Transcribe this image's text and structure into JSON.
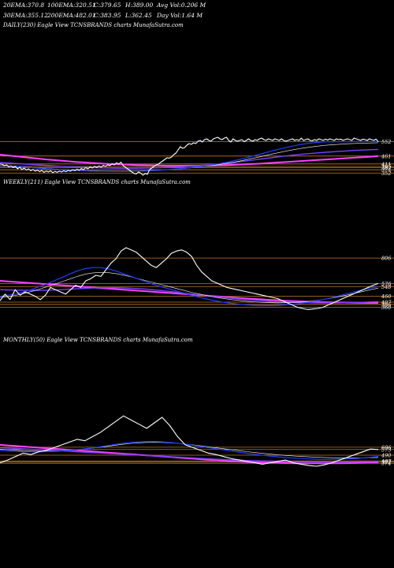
{
  "header": {
    "row1": [
      {
        "label": "20EMA:",
        "value": "370.8"
      },
      {
        "label": "100EMA:",
        "value": "320.51"
      },
      {
        "label": "C:",
        "value": "379.65"
      },
      {
        "label": "H:",
        "value": "389.00"
      },
      {
        "label": "Avg Vol:",
        "value": "0.206  M"
      }
    ],
    "row2": [
      {
        "label": "30EMA:",
        "value": "355.12"
      },
      {
        "label": "200EMA:",
        "value": "482.01"
      },
      {
        "label": "C:",
        "value": "383.95"
      },
      {
        "label": "L:",
        "value": "362.45"
      },
      {
        "label": "Day Vol:",
        "value": "1.64  M"
      }
    ]
  },
  "colors": {
    "background": "#000000",
    "price": "#ffffff",
    "ema_fast": "#ffffff",
    "ema_blue": "#1f3fff",
    "ema_magenta": "#ff3fff",
    "ema_purple": "#7a3fff",
    "level_line": "#c07a2a"
  },
  "chart_data": [
    {
      "type": "line",
      "panel": "daily",
      "label": "DAILY(230) Eagle  View  TCNSBRANDS charts MunafaSutra.com",
      "ylim": [
        310,
        700
      ],
      "levels": [
        {
          "value": "552",
          "y": 552
        },
        {
          "value": "461",
          "y": 461
        },
        {
          "value": "411",
          "y": 411
        },
        {
          "value": "395",
          "y": 395
        },
        {
          "value": "387",
          "y": 387
        },
        {
          "value": "374",
          "y": 374
        },
        {
          "value": "352",
          "y": 352
        }
      ],
      "series": [
        {
          "role": "price",
          "values": [
            412,
            408,
            400,
            405,
            392,
            398,
            388,
            395,
            380,
            390,
            375,
            385,
            372,
            380,
            368,
            376,
            365,
            372,
            362,
            370,
            358,
            366,
            360,
            368,
            356,
            364,
            358,
            366,
            360,
            368,
            362,
            370,
            365,
            374,
            368,
            378,
            370,
            382,
            375,
            388,
            380,
            392,
            385,
            396,
            388,
            398,
            390,
            402,
            395,
            406,
            400,
            412,
            405,
            418,
            410,
            422,
            400,
            390,
            380,
            370,
            360,
            350,
            348,
            360,
            352,
            340,
            350,
            345,
            375,
            385,
            395,
            405,
            410,
            420,
            430,
            440,
            450,
            448,
            455,
            470,
            480,
            500,
            520,
            510,
            515,
            530,
            540,
            535,
            545,
            540,
            555,
            560,
            550,
            565,
            570,
            560,
            555,
            570,
            575,
            580,
            570,
            565,
            575,
            580,
            560,
            550,
            570,
            560,
            555,
            560,
            565,
            552,
            560,
            570,
            560,
            555,
            565,
            560,
            570,
            575,
            565,
            560,
            570,
            565,
            560,
            570,
            565,
            560,
            570,
            560,
            555,
            560,
            565,
            570,
            560,
            565,
            560,
            575,
            560,
            565,
            570,
            560,
            558,
            565,
            560,
            570,
            565,
            560,
            568,
            562,
            570,
            565,
            560,
            570,
            565,
            568,
            560,
            565,
            570,
            565,
            560,
            575,
            570,
            565,
            560,
            568,
            565,
            560,
            570,
            565,
            560,
            568,
            552
          ]
        },
        {
          "role": "ema20",
          "values": [
            400,
            398,
            395,
            392,
            388,
            384,
            380,
            377,
            374,
            372,
            370,
            368,
            366,
            365,
            364,
            363,
            363,
            363,
            364,
            366,
            368,
            371,
            374,
            378,
            382,
            386,
            392,
            398,
            405,
            413,
            422,
            432,
            443,
            455,
            468,
            481,
            494,
            506,
            517,
            527,
            536,
            543,
            548,
            551,
            552,
            552,
            552,
            553,
            553,
            553,
            552
          ]
        },
        {
          "role": "ema30",
          "values": [
            402,
            400,
            397,
            394,
            390,
            386,
            382,
            379,
            376,
            374,
            372,
            370,
            368,
            367,
            366,
            365,
            365,
            365,
            366,
            368,
            370,
            372,
            375,
            378,
            381,
            385,
            390,
            395,
            401,
            408,
            415,
            423,
            432,
            442,
            452,
            463,
            474,
            484,
            494,
            503,
            511,
            518,
            524,
            529,
            533,
            536,
            539,
            541,
            543,
            544,
            545
          ]
        },
        {
          "role": "ema100",
          "values": [
            420,
            417,
            414,
            411,
            408,
            405,
            402,
            399,
            396,
            394,
            392,
            390,
            388,
            387,
            386,
            385,
            384,
            384,
            384,
            385,
            386,
            387,
            389,
            391,
            393,
            396,
            399,
            403,
            407,
            411,
            416,
            421,
            427,
            433,
            439,
            445,
            451,
            457,
            463,
            468,
            473,
            477,
            481,
            485,
            488,
            491,
            494,
            497,
            499,
            501,
            503
          ]
        },
        {
          "role": "ema200",
          "values": [
            470,
            465,
            460,
            455,
            450,
            445,
            440,
            436,
            432,
            428,
            424,
            421,
            418,
            415,
            412,
            410,
            408,
            406,
            404,
            403,
            402,
            401,
            400,
            400,
            400,
            400,
            400,
            401,
            402,
            403,
            404,
            406,
            408,
            410,
            412,
            415,
            418,
            421,
            424,
            427,
            430,
            433,
            436,
            439,
            442,
            445,
            448,
            451,
            454,
            457,
            461
          ]
        }
      ]
    },
    {
      "type": "line",
      "panel": "weekly",
      "label": "WEEKLY(211) Eagle  View  TCNSBRANDS charts MunafaSutra.com",
      "ylim": [
        300,
        1000
      ],
      "levels": [
        {
          "value": "806",
          "y": 806
        },
        {
          "value": "576",
          "y": 576
        },
        {
          "value": "548",
          "y": 548
        },
        {
          "value": "460",
          "y": 460
        },
        {
          "value": "407",
          "y": 407
        },
        {
          "value": "386",
          "y": 386
        },
        {
          "value": "360",
          "y": 360
        }
      ],
      "series": [
        {
          "role": "price",
          "values": [
            420,
            480,
            430,
            520,
            470,
            500,
            480,
            460,
            430,
            470,
            540,
            520,
            500,
            480,
            520,
            560,
            540,
            600,
            620,
            650,
            640,
            700,
            760,
            800,
            870,
            900,
            880,
            860,
            820,
            780,
            740,
            720,
            760,
            800,
            850,
            870,
            880,
            860,
            820,
            740,
            680,
            640,
            600,
            580,
            560,
            540,
            530,
            520,
            510,
            500,
            490,
            480,
            470,
            460,
            450,
            440,
            420,
            400,
            380,
            360,
            350,
            340,
            345,
            350,
            360,
            380,
            400,
            420,
            440,
            460,
            480,
            500,
            520,
            540,
            560,
            576
          ]
        },
        {
          "role": "ema20",
          "values": [
            460,
            470,
            480,
            500,
            520,
            545,
            570,
            600,
            630,
            660,
            690,
            710,
            720,
            720,
            710,
            690,
            665,
            640,
            615,
            590,
            565,
            545,
            525,
            505,
            485,
            465,
            448,
            432,
            418,
            406,
            396,
            388,
            382,
            378,
            376,
            376,
            378,
            382,
            388,
            396,
            406,
            418,
            432,
            448,
            466,
            484,
            502,
            520,
            536,
            548
          ]
        },
        {
          "role": "ema30",
          "values": [
            450,
            458,
            468,
            484,
            502,
            522,
            545,
            568,
            592,
            616,
            640,
            660,
            672,
            676,
            674,
            666,
            652,
            636,
            618,
            600,
            582,
            564,
            546,
            528,
            510,
            493,
            478,
            464,
            451,
            440,
            430,
            422,
            415,
            409,
            405,
            402,
            401,
            402,
            404,
            408,
            414,
            422,
            432,
            444,
            458,
            472,
            488,
            504,
            520,
            534
          ]
        },
        {
          "role": "ema100",
          "values": [
            520,
            518,
            516,
            515,
            514,
            514,
            515,
            517,
            520,
            524,
            528,
            532,
            535,
            537,
            538,
            538,
            536,
            533,
            529,
            524,
            518,
            511,
            504,
            496,
            488,
            480,
            472,
            464,
            456,
            449,
            442,
            436,
            430,
            425,
            420,
            416,
            412,
            409,
            406,
            404,
            402,
            401,
            400,
            400,
            401,
            402,
            404,
            406,
            409,
            412
          ]
        },
        {
          "role": "ema200",
          "values": [
            600,
            595,
            590,
            585,
            580,
            575,
            570,
            565,
            560,
            555,
            550,
            545,
            540,
            535,
            530,
            525,
            520,
            515,
            510,
            505,
            500,
            495,
            490,
            485,
            480,
            475,
            470,
            465,
            460,
            455,
            450,
            445,
            440,
            436,
            432,
            428,
            424,
            420,
            417,
            414,
            411,
            409,
            407,
            405,
            404,
            403,
            402,
            401,
            400,
            400
          ]
        }
      ]
    },
    {
      "type": "line",
      "panel": "monthly",
      "label": "MONTHLY(50) Eagle  View  TCNSBRANDS charts MunafaSutra.com",
      "ylim": [
        250,
        1200
      ],
      "levels": [
        {
          "value": "606",
          "y": 606
        },
        {
          "value": "573",
          "y": 573
        },
        {
          "value": "490",
          "y": 490
        },
        {
          "value": "407",
          "y": 407
        },
        {
          "value": "392",
          "y": 392
        },
        {
          "value": "374",
          "y": 374
        }
      ],
      "series": [
        {
          "role": "price",
          "values": [
            380,
            420,
            470,
            520,
            500,
            540,
            560,
            600,
            640,
            680,
            720,
            700,
            760,
            820,
            900,
            980,
            1060,
            1000,
            940,
            880,
            960,
            1040,
            920,
            760,
            640,
            600,
            560,
            520,
            500,
            470,
            440,
            420,
            400,
            380,
            360,
            380,
            400,
            420,
            380,
            360,
            340,
            330,
            350,
            380,
            420,
            460,
            500,
            540,
            580,
            573
          ]
        },
        {
          "role": "ema20",
          "values": [
            560,
            552,
            546,
            542,
            540,
            540,
            542,
            546,
            552,
            560,
            570,
            582,
            596,
            612,
            630,
            648,
            664,
            676,
            684,
            688,
            688,
            684,
            676,
            664,
            650,
            634,
            618,
            600,
            584,
            566,
            550,
            534,
            518,
            504,
            490,
            478,
            466,
            456,
            448,
            442,
            436,
            432,
            430,
            430,
            432,
            436,
            442,
            450,
            460,
            472
          ]
        },
        {
          "role": "ema30",
          "values": [
            580,
            570,
            562,
            556,
            552,
            550,
            550,
            552,
            556,
            562,
            570,
            580,
            592,
            606,
            620,
            636,
            650,
            662,
            670,
            676,
            678,
            676,
            670,
            662,
            652,
            640,
            626,
            612,
            598,
            584,
            570,
            556,
            542,
            529,
            517,
            506,
            496,
            487,
            479,
            472,
            466,
            461,
            457,
            454,
            452,
            451,
            451,
            452,
            454,
            457
          ]
        },
        {
          "role": "ema100",
          "values": [
            600,
            594,
            588,
            582,
            576,
            570,
            564,
            558,
            552,
            546,
            540,
            534,
            528,
            522,
            516,
            510,
            504,
            498,
            492,
            486,
            480,
            474,
            468,
            462,
            456,
            450,
            444,
            438,
            432,
            427,
            422,
            418,
            414,
            410,
            407,
            404,
            402,
            400,
            398,
            396,
            395,
            394,
            393,
            393,
            393,
            394,
            395,
            397,
            399,
            402
          ]
        },
        {
          "role": "ema200",
          "values": [
            640,
            632,
            624,
            616,
            608,
            600,
            592,
            584,
            576,
            568,
            560,
            552,
            544,
            536,
            528,
            520,
            512,
            504,
            496,
            488,
            480,
            472,
            464,
            456,
            448,
            440,
            432,
            424,
            416,
            410,
            404,
            398,
            393,
            388,
            384,
            381,
            378,
            376,
            374,
            373,
            372,
            372,
            372,
            373,
            374,
            375,
            377,
            380,
            383,
            386
          ]
        }
      ]
    }
  ]
}
